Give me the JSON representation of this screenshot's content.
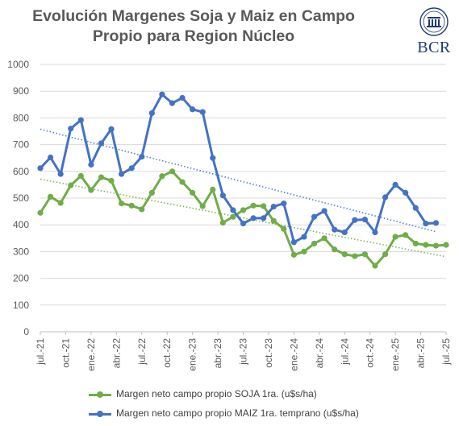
{
  "title_line1": "Evolución Margenes Soja y Maiz  en Campo",
  "title_line2": "Propio para Region Núcleo",
  "logo_text": "BCR",
  "chart_data": {
    "type": "line",
    "ylim": [
      0,
      1000
    ],
    "yticks": [
      0,
      100,
      200,
      300,
      400,
      500,
      600,
      700,
      800,
      900,
      1000
    ],
    "x_tick_labels": [
      "jul.-21",
      "oct.-21",
      "ene.-22",
      "abr.-22",
      "jul.-22",
      "oct.-22",
      "ene.-23",
      "abr.-23",
      "jul.-23",
      "oct.-23",
      "ene.-24",
      "abr.-24",
      "jul.-24",
      "oct.-24",
      "ene.-25",
      "abr.-25",
      "jul.-25"
    ],
    "grid": "horizontal",
    "trendlines": "linear, dotted",
    "legend_position": "bottom",
    "series": [
      {
        "name": "Margen neto campo propio SOJA 1ra. (u$s/ha)",
        "color": "#70ad47",
        "values": [
          445,
          505,
          482,
          548,
          583,
          530,
          578,
          565,
          480,
          472,
          458,
          520,
          582,
          600,
          560,
          520,
          470,
          532,
          408,
          430,
          455,
          472,
          470,
          415,
          385,
          288,
          300,
          330,
          350,
          308,
          290,
          283,
          290,
          247,
          290,
          355,
          362,
          330,
          325,
          322,
          325
        ]
      },
      {
        "name": "Margen neto campo propio MAIZ 1ra. temprano (u$s/ha)",
        "color": "#4472c4",
        "values": [
          612,
          652,
          590,
          760,
          792,
          625,
          705,
          758,
          590,
          612,
          655,
          818,
          888,
          855,
          875,
          832,
          822,
          650,
          510,
          455,
          405,
          425,
          425,
          468,
          480,
          335,
          355,
          430,
          452,
          382,
          372,
          418,
          420,
          372,
          503,
          550,
          520,
          463,
          405,
          407
        ]
      }
    ]
  }
}
